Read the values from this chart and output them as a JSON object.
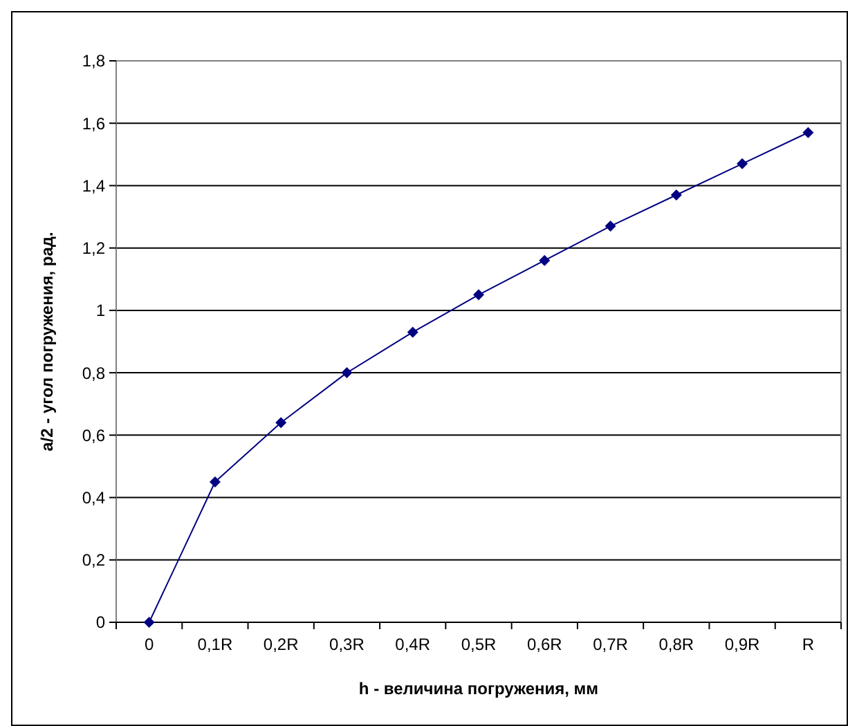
{
  "chart_data": {
    "type": "line",
    "xlabel": "h - величина погружения, мм",
    "ylabel": "a/2 - угол погружения, рад.",
    "categories": [
      "0",
      "0,1R",
      "0,2R",
      "0,3R",
      "0,4R",
      "0,5R",
      "0,6R",
      "0,7R",
      "0,8R",
      "0,9R",
      "R"
    ],
    "series": [
      {
        "color": "#000080",
        "values": [
          0,
          0.45,
          0.64,
          0.8,
          0.93,
          1.05,
          1.16,
          1.27,
          1.37,
          1.47,
          1.57
        ]
      }
    ],
    "ylim": [
      0,
      1.8
    ],
    "yticks": [
      0,
      {
        "value": 0.2,
        "label": "0,2"
      },
      {
        "value": 0.4,
        "label": "0,4"
      },
      {
        "value": 0.6,
        "label": "0,6"
      },
      {
        "value": 0.8,
        "label": "0,8"
      },
      1,
      {
        "value": 1.2,
        "label": "1,2"
      },
      {
        "value": 1.4,
        "label": "1,4"
      },
      {
        "value": 1.6,
        "label": "1,6"
      },
      {
        "value": 1.8,
        "label": "1,8"
      }
    ],
    "grid": "y",
    "marker": "diamond",
    "line_style": "solid"
  }
}
